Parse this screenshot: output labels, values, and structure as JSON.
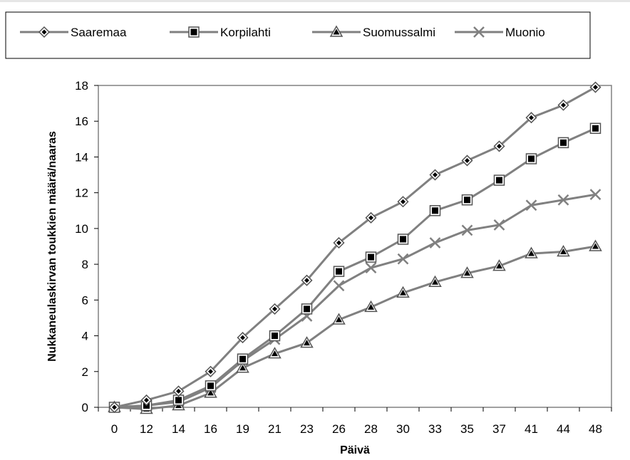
{
  "chart_data": {
    "type": "line",
    "xlabel": "Päivä",
    "ylabel": "Nukkaneulaskirvan toukkien määrä/naaras",
    "categories": [
      "0",
      "12",
      "14",
      "16",
      "19",
      "21",
      "23",
      "26",
      "28",
      "30",
      "33",
      "35",
      "37",
      "41",
      "44",
      "48"
    ],
    "ylim": [
      0,
      18
    ],
    "yticks": [
      "0",
      "2",
      "4",
      "6",
      "8",
      "10",
      "12",
      "14",
      "16",
      "18"
    ],
    "grid": false,
    "legend_position": "top",
    "series": [
      {
        "name": "Saaremaa",
        "marker": "diamond",
        "color": "#808080",
        "values": [
          0,
          0.4,
          0.9,
          2.0,
          3.9,
          5.5,
          7.1,
          9.2,
          10.6,
          11.5,
          13.0,
          13.8,
          14.6,
          16.2,
          16.9,
          17.9
        ]
      },
      {
        "name": "Korpilahti",
        "marker": "square",
        "color": "#808080",
        "values": [
          0,
          0.1,
          0.4,
          1.2,
          2.7,
          4.0,
          5.5,
          7.6,
          8.4,
          9.4,
          11.0,
          11.6,
          12.7,
          13.9,
          14.8,
          15.6
        ]
      },
      {
        "name": "Suomussalmi",
        "marker": "triangle",
        "color": "#808080",
        "values": [
          0,
          -0.1,
          0.1,
          0.8,
          2.2,
          3.0,
          3.6,
          4.9,
          5.6,
          6.4,
          7.0,
          7.5,
          7.9,
          8.6,
          8.7,
          9.0
        ]
      },
      {
        "name": "Muonio",
        "marker": "x",
        "color": "#808080",
        "values": [
          0,
          0.1,
          0.3,
          1.1,
          2.6,
          3.8,
          5.1,
          6.8,
          7.8,
          8.3,
          9.2,
          9.9,
          10.2,
          11.3,
          11.6,
          11.9
        ]
      }
    ]
  }
}
